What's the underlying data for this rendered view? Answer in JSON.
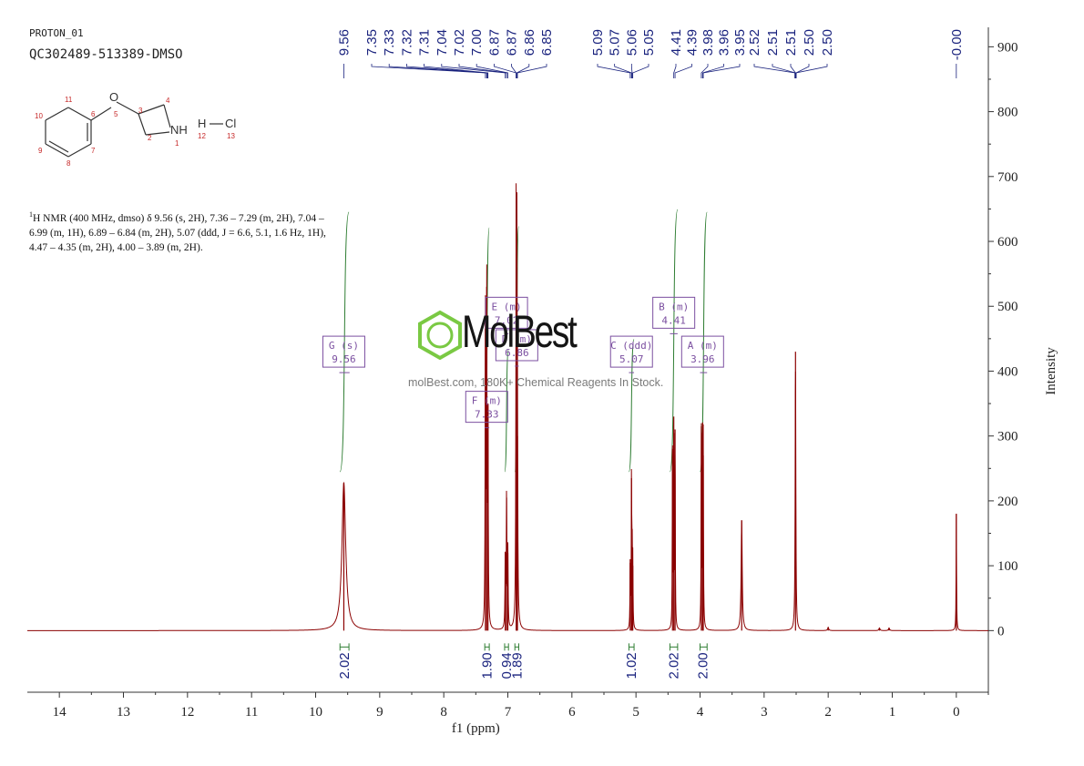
{
  "header": {
    "sample_name": "PROTON_01",
    "sample_id": "QC302489-513389-DMSO"
  },
  "structure": {
    "atom_labels": [
      "O",
      "NH",
      "H",
      "Cl"
    ],
    "atom_numbers": [
      "1",
      "2",
      "3",
      "4",
      "5",
      "6",
      "7",
      "8",
      "9",
      "10",
      "11",
      "12",
      "13"
    ]
  },
  "nmr_text": {
    "nucleus_sup": "1",
    "body": "H NMR (400 MHz, dmso) δ 9.56 (s, 2H), 7.36 – 7.29 (m, 2H), 7.04 – 6.99 (m, 1H), 6.89 – 6.84 (m, 2H), 5.07 (ddd, J = 6.6, 5.1, 1.6 Hz, 1H), 4.47 – 4.35 (m, 2H), 4.00 – 3.89 (m, 2H)."
  },
  "watermark": {
    "name": "MolBest",
    "tagline": "molBest.com, 180K+ Chemical Reagents In Stock."
  },
  "colors": {
    "spectrum": "#8b0000",
    "peak_label": "#1a237e",
    "integral": "#2e7d32",
    "multiplet_box": "#7b4fa0",
    "axis": "#333333",
    "watermark_logo": "#7ac943"
  },
  "chart_data": {
    "type": "line",
    "xlabel": "f1 (ppm)",
    "ylabel": "Intensity",
    "xlim": [
      14.5,
      -0.5
    ],
    "ylim": [
      -95,
      930
    ],
    "x_reversed": true,
    "x_ticks": [
      "14",
      "13",
      "12",
      "11",
      "10",
      "9",
      "8",
      "7",
      "6",
      "5",
      "4",
      "3",
      "2",
      "1",
      "0"
    ],
    "y_ticks": [
      "0",
      "100",
      "200",
      "300",
      "400",
      "500",
      "600",
      "700",
      "800",
      "900"
    ],
    "peak_labels": [
      "9.56",
      "7.35",
      "7.33",
      "7.32",
      "7.31",
      "7.04",
      "7.02",
      "7.00",
      "6.87",
      "6.87",
      "6.86",
      "6.85",
      "5.09",
      "5.07",
      "5.06",
      "5.05",
      "4.41",
      "4.39",
      "3.98",
      "3.96",
      "3.95",
      "2.52",
      "2.51",
      "2.51",
      "2.50",
      "2.50",
      "-0.00"
    ],
    "peaks": [
      {
        "ppm": 9.56,
        "height": 228,
        "width": 0.035
      },
      {
        "ppm": 7.35,
        "height": 480,
        "width": 0.005
      },
      {
        "ppm": 7.33,
        "height": 530,
        "width": 0.005
      },
      {
        "ppm": 7.31,
        "height": 350,
        "width": 0.005
      },
      {
        "ppm": 7.04,
        "height": 120,
        "width": 0.005
      },
      {
        "ppm": 7.02,
        "height": 205,
        "width": 0.005
      },
      {
        "ppm": 7.0,
        "height": 120,
        "width": 0.005
      },
      {
        "ppm": 6.87,
        "height": 590,
        "width": 0.005
      },
      {
        "ppm": 6.86,
        "height": 560,
        "width": 0.005
      },
      {
        "ppm": 6.85,
        "height": 300,
        "width": 0.005
      },
      {
        "ppm": 5.09,
        "height": 110,
        "width": 0.004
      },
      {
        "ppm": 5.07,
        "height": 235,
        "width": 0.004
      },
      {
        "ppm": 5.06,
        "height": 130,
        "width": 0.004
      },
      {
        "ppm": 5.05,
        "height": 100,
        "width": 0.004
      },
      {
        "ppm": 4.43,
        "height": 280,
        "width": 0.004
      },
      {
        "ppm": 4.41,
        "height": 330,
        "width": 0.004
      },
      {
        "ppm": 4.39,
        "height": 310,
        "width": 0.004
      },
      {
        "ppm": 3.98,
        "height": 315,
        "width": 0.004
      },
      {
        "ppm": 3.96,
        "height": 305,
        "width": 0.004
      },
      {
        "ppm": 3.95,
        "height": 270,
        "width": 0.004
      },
      {
        "ppm": 3.35,
        "height": 170,
        "width": 0.01
      },
      {
        "ppm": 2.51,
        "height": 430,
        "width": 0.006
      },
      {
        "ppm": 0.0,
        "height": 180,
        "width": 0.004
      },
      {
        "ppm": 2.0,
        "height": 5,
        "width": 0.01
      },
      {
        "ppm": 1.2,
        "height": 4,
        "width": 0.01
      },
      {
        "ppm": 1.05,
        "height": 4,
        "width": 0.01
      }
    ],
    "multiplets": [
      {
        "label": "G (s)",
        "shift": "9.56",
        "ppm": 9.56,
        "range": [
          9.63,
          9.47
        ],
        "box_y": 430
      },
      {
        "label": "E (m)",
        "shift": "7.02",
        "ppm": 7.02,
        "range": [
          7.05,
          6.99
        ],
        "box_y": 490
      },
      {
        "label": "D (m)",
        "shift": "6.86",
        "ppm": 6.86,
        "range": [
          6.89,
          6.83
        ],
        "box_y": 440
      },
      {
        "label": "F (m)",
        "shift": "7.33",
        "ppm": 7.33,
        "range": [
          7.36,
          7.29
        ],
        "box_y": 345
      },
      {
        "label": "C (ddd)",
        "shift": "5.07",
        "ppm": 5.07,
        "range": [
          5.11,
          5.03
        ],
        "box_y": 430
      },
      {
        "label": "B (m)",
        "shift": "4.41",
        "ppm": 4.41,
        "range": [
          4.47,
          4.35
        ],
        "box_y": 490
      },
      {
        "label": "A (m)",
        "shift": "3.96",
        "ppm": 3.96,
        "range": [
          4.0,
          3.89
        ],
        "box_y": 430
      }
    ],
    "integrals": [
      {
        "value": "2.02",
        "from": 9.62,
        "to": 9.48,
        "center": 9.55,
        "rise": 200
      },
      {
        "value": "1.90",
        "from": 7.36,
        "to": 7.29,
        "center": 7.33,
        "rise": 188
      },
      {
        "value": "0.94",
        "from": 7.05,
        "to": 6.99,
        "center": 7.02,
        "rise": 94
      },
      {
        "value": "1.89",
        "from": 6.89,
        "to": 6.83,
        "center": 6.86,
        "rise": 189
      },
      {
        "value": "1.02",
        "from": 5.11,
        "to": 5.03,
        "center": 5.07,
        "rise": 102
      },
      {
        "value": "2.02",
        "from": 4.47,
        "to": 4.35,
        "center": 4.41,
        "rise": 202
      },
      {
        "value": "2.00",
        "from": 4.0,
        "to": 3.89,
        "center": 3.96,
        "rise": 200
      }
    ]
  }
}
